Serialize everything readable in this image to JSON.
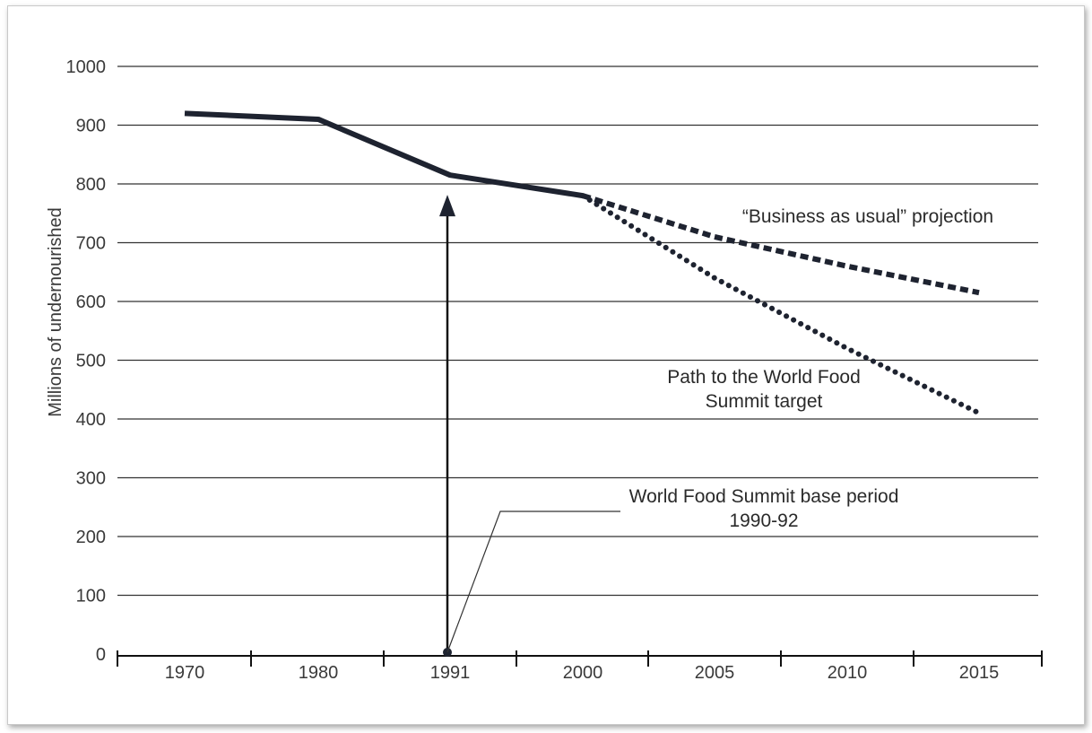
{
  "chart_data": {
    "type": "line",
    "title": "",
    "ylabel": "Millions of undernourished",
    "xlabel": "",
    "ylim": [
      0,
      1000
    ],
    "yticks": [
      0,
      100,
      200,
      300,
      400,
      500,
      600,
      700,
      800,
      900,
      1000
    ],
    "categories": [
      "1970",
      "1980",
      "1991",
      "2000",
      "2005",
      "2010",
      "2015"
    ],
    "grid": true,
    "series": [
      {
        "name": "",
        "style": "solid",
        "color": "#1e2330",
        "points": [
          {
            "x": "1970",
            "y": 920
          },
          {
            "x": "1980",
            "y": 910
          },
          {
            "x": "1991",
            "y": 815
          },
          {
            "x": "2000",
            "y": 780
          }
        ]
      },
      {
        "name": "“Business as usual” projection",
        "style": "dashed",
        "color": "#1e2330",
        "points": [
          {
            "x": "2000",
            "y": 780
          },
          {
            "x": "2005",
            "y": 710
          },
          {
            "x": "2010",
            "y": 660
          },
          {
            "x": "2015",
            "y": 615
          }
        ]
      },
      {
        "name": "Path to the World Food Summit target",
        "style": "dotted",
        "color": "#1e2330",
        "points": [
          {
            "x": "2000",
            "y": 780
          },
          {
            "x": "2005",
            "y": 640
          },
          {
            "x": "2010",
            "y": 520
          },
          {
            "x": "2015",
            "y": 410
          }
        ]
      }
    ],
    "annotations": [
      {
        "name": "business-as-usual-label",
        "lines": [
          "“Business as usual” projection"
        ]
      },
      {
        "name": "wfs-target-label",
        "lines": [
          "Path to the World Food",
          "Summit target"
        ]
      },
      {
        "name": "wfs-base-period-label",
        "lines": [
          "World Food Summit base period",
          "1990-92"
        ]
      }
    ],
    "marker": {
      "x": "1991",
      "from": 0,
      "to": 815
    }
  }
}
